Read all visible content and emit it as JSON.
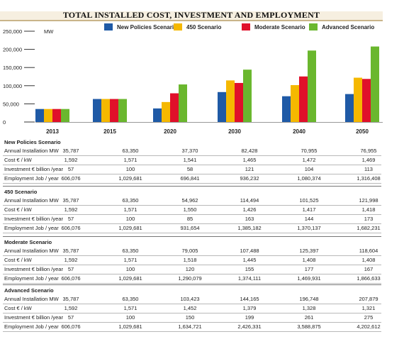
{
  "chart_data": {
    "type": "bar",
    "title": "TOTAL INSTALLED COST, INVESTMENT AND EMPLOYMENT",
    "ylabel": "MW",
    "ylim": [
      0,
      250000
    ],
    "yticks": [
      "250,000",
      "200,000",
      "150,000",
      "100,000",
      "50,000",
      "0"
    ],
    "ytick_values": [
      250000,
      200000,
      150000,
      100000,
      50000,
      0
    ],
    "categories": [
      "2013",
      "2015",
      "2020",
      "2030",
      "2040",
      "2050"
    ],
    "legend_position": "top",
    "series": [
      {
        "name": "New Policies Scenario",
        "color": "#1f5aa6",
        "values": [
          35787,
          63350,
          37370,
          82428,
          70955,
          76955
        ]
      },
      {
        "name": "450 Scenario",
        "color": "#f5b800",
        "values": [
          35787,
          63350,
          54962,
          114494,
          101525,
          121998
        ]
      },
      {
        "name": "Moderate Scenario",
        "color": "#e0102a",
        "values": [
          35787,
          63350,
          79005,
          107488,
          125397,
          118604
        ]
      },
      {
        "name": "Advanced Scenario",
        "color": "#6ab72e",
        "values": [
          35787,
          63350,
          103423,
          144165,
          196748,
          207879
        ]
      }
    ]
  },
  "table": {
    "row_labels": [
      "Annual Installation MW",
      "Cost € / kW",
      "Investment € billion /year",
      "Employment Job / year"
    ],
    "sections": [
      {
        "title": "New Policies Scenario",
        "rows": [
          [
            "35,787",
            "63,350",
            "37,370",
            "82,428",
            "70,955",
            "76,955"
          ],
          [
            "1,592",
            "1,571",
            "1,541",
            "1,465",
            "1,472",
            "1,469"
          ],
          [
            "57",
            "100",
            "58",
            "121",
            "104",
            "113"
          ],
          [
            "606,076",
            "1,029,681",
            "696,841",
            "936,232",
            "1,080,374",
            "1,316,408"
          ]
        ]
      },
      {
        "title": "450 Scenario",
        "rows": [
          [
            "35,787",
            "63,350",
            "54,962",
            "114,494",
            "101,525",
            "121,998"
          ],
          [
            "1,592",
            "1,571",
            "1,550",
            "1,426",
            "1,417",
            "1,418"
          ],
          [
            "57",
            "100",
            "85",
            "163",
            "144",
            "173"
          ],
          [
            "606,076",
            "1,029,681",
            "931,654",
            "1,385,182",
            "1,370,137",
            "1,682,231"
          ]
        ]
      },
      {
        "title": "Moderate Scenario",
        "rows": [
          [
            "35,787",
            "63,350",
            "79,005",
            "107,488",
            "125,397",
            "118,604"
          ],
          [
            "1,592",
            "1,571",
            "1,518",
            "1,445",
            "1,408",
            "1,408"
          ],
          [
            "57",
            "100",
            "120",
            "155",
            "177",
            "167"
          ],
          [
            "606,076",
            "1,029,681",
            "1,290,079",
            "1,374,111",
            "1,469,931",
            "1,866,633"
          ]
        ]
      },
      {
        "title": "Advanced Scenario",
        "rows": [
          [
            "35,787",
            "63,350",
            "103,423",
            "144,165",
            "196,748",
            "207,879"
          ],
          [
            "1,592",
            "1,571",
            "1,452",
            "1,379",
            "1,328",
            "1,321"
          ],
          [
            "57",
            "100",
            "150",
            "199",
            "261",
            "275"
          ],
          [
            "606,076",
            "1,029,681",
            "1,634,721",
            "2,426,331",
            "3,588,875",
            "4,202,612"
          ]
        ]
      }
    ]
  }
}
